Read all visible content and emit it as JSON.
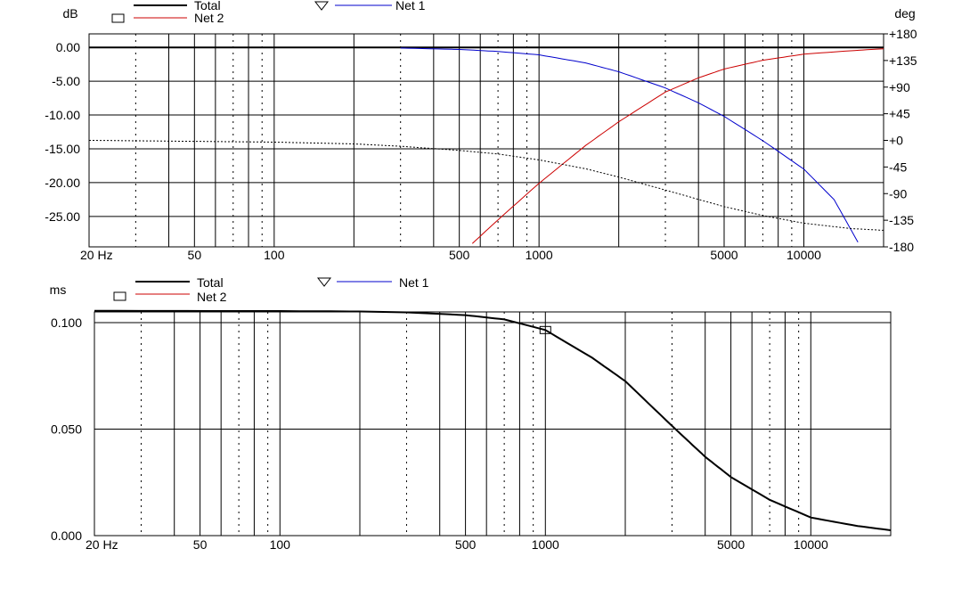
{
  "chart_data": [
    {
      "type": "line",
      "name": "frequency-response",
      "xlabel": "Hz",
      "x_scale": "log",
      "xlim": [
        20,
        20000
      ],
      "x_tick_labels": [
        {
          "value": 20,
          "label": "20 Hz"
        },
        {
          "value": 50,
          "label": "50"
        },
        {
          "value": 100,
          "label": "100"
        },
        {
          "value": 500,
          "label": "500"
        },
        {
          "value": 1000,
          "label": "1000"
        },
        {
          "value": 5000,
          "label": "5000"
        },
        {
          "value": 10000,
          "label": "10000"
        }
      ],
      "ylabel_left": "dB",
      "ylim_left": [
        -29.5,
        2
      ],
      "y_ticks_left": [
        {
          "value": 0,
          "label": "0.00"
        },
        {
          "value": -5,
          "label": "-5.00"
        },
        {
          "value": -10,
          "label": "-10.00"
        },
        {
          "value": -15,
          "label": "-15.00"
        },
        {
          "value": -20,
          "label": "-20.00"
        },
        {
          "value": -25,
          "label": "-25.00"
        }
      ],
      "ylabel_right": "deg",
      "ylim_right": [
        -180,
        180
      ],
      "y_ticks_right": [
        {
          "value": 180,
          "label": "+180"
        },
        {
          "value": 135,
          "label": "+135"
        },
        {
          "value": 90,
          "label": "+90"
        },
        {
          "value": 45,
          "label": "+45"
        },
        {
          "value": 0,
          "label": "+0"
        },
        {
          "value": -45,
          "label": "-45"
        },
        {
          "value": -90,
          "label": "-90"
        },
        {
          "value": -135,
          "label": "-135"
        },
        {
          "value": -180,
          "label": "-180"
        }
      ],
      "grid": true,
      "legend": [
        {
          "name": "Total",
          "color": "#000000",
          "style": "line"
        },
        {
          "name": "Net 2",
          "color": "#cc0000",
          "style": "line",
          "marker": "square"
        },
        {
          "name": "Net 1",
          "color": "#0000cc",
          "style": "line",
          "marker": "triangle"
        }
      ],
      "series": [
        {
          "name": "Total",
          "axis": "left",
          "color": "#000000",
          "dash": "solid",
          "x": [
            20,
            100,
            1000,
            10000,
            20000
          ],
          "y": [
            0,
            0,
            0,
            0,
            0
          ]
        },
        {
          "name": "Net 1",
          "axis": "left",
          "color": "#0000cc",
          "dash": "solid",
          "x": [
            300,
            500,
            700,
            1000,
            1500,
            2000,
            3000,
            4000,
            5000,
            7000,
            10000,
            13000,
            16000
          ],
          "y": [
            -0.1,
            -0.3,
            -0.6,
            -1.1,
            -2.3,
            -3.6,
            -6.0,
            -8.2,
            -10.2,
            -13.8,
            -18.0,
            -22.5,
            -28.8
          ]
        },
        {
          "name": "Net 2",
          "axis": "left",
          "color": "#cc0000",
          "dash": "solid",
          "x": [
            560,
            700,
            1000,
            1500,
            2000,
            3000,
            4000,
            5000,
            7000,
            10000,
            15000,
            20000
          ],
          "y": [
            -29,
            -25.5,
            -20.1,
            -14.5,
            -11.0,
            -6.6,
            -4.5,
            -3.2,
            -1.9,
            -1.0,
            -0.5,
            -0.2
          ]
        },
        {
          "name": "Phase",
          "axis": "right",
          "color": "#000000",
          "dash": "dotted",
          "x": [
            20,
            100,
            200,
            300,
            500,
            700,
            1000,
            1500,
            2000,
            3000,
            5000,
            7000,
            10000,
            15000,
            20000
          ],
          "y": [
            0,
            -3,
            -6,
            -10,
            -17,
            -23,
            -33,
            -48,
            -62,
            -84,
            -112,
            -127,
            -140,
            -149,
            -152
          ]
        }
      ]
    },
    {
      "type": "line",
      "name": "group-delay",
      "xlabel": "Hz",
      "x_scale": "log",
      "xlim": [
        20,
        20000
      ],
      "x_tick_labels": [
        {
          "value": 20,
          "label": "20 Hz"
        },
        {
          "value": 50,
          "label": "50"
        },
        {
          "value": 100,
          "label": "100"
        },
        {
          "value": 500,
          "label": "500"
        },
        {
          "value": 1000,
          "label": "1000"
        },
        {
          "value": 5000,
          "label": "5000"
        },
        {
          "value": 10000,
          "label": "10000"
        }
      ],
      "ylabel_left": "ms",
      "ylim_left": [
        0,
        0.105
      ],
      "y_ticks_left": [
        {
          "value": 0.1,
          "label": "0.100"
        },
        {
          "value": 0.05,
          "label": "0.050"
        },
        {
          "value": 0,
          "label": "0.000"
        }
      ],
      "grid": true,
      "legend": [
        {
          "name": "Total",
          "color": "#000000",
          "style": "line"
        },
        {
          "name": "Net 2",
          "color": "#cc0000",
          "style": "line",
          "marker": "square"
        },
        {
          "name": "Net 1",
          "color": "#0000cc",
          "style": "line",
          "marker": "triangle"
        }
      ],
      "series": [
        {
          "name": "Total",
          "axis": "left",
          "color": "#000000",
          "dash": "solid",
          "x": [
            20,
            100,
            200,
            300,
            500,
            700,
            1000,
            1500,
            2000,
            3000,
            4000,
            5000,
            7000,
            10000,
            15000,
            20000
          ],
          "y": [
            0.1055,
            0.1054,
            0.1052,
            0.1048,
            0.1035,
            0.1015,
            0.0965,
            0.0835,
            0.0725,
            0.0515,
            0.037,
            0.0275,
            0.0168,
            0.0085,
            0.0045,
            0.0025
          ]
        }
      ]
    }
  ]
}
